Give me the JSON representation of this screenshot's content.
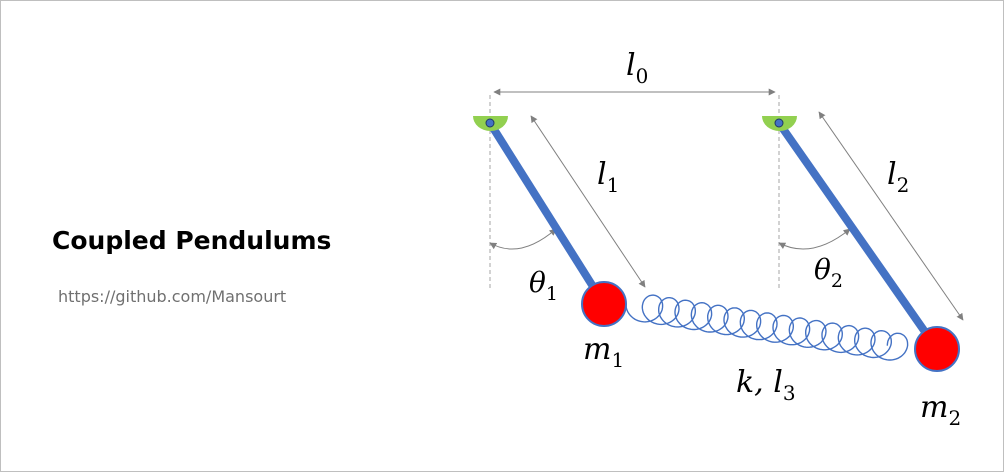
{
  "title": "Coupled Pendulums",
  "credit": "https://github.com/Mansourt",
  "labels": {
    "l0": {
      "base": "l",
      "sub": "0"
    },
    "l1": {
      "base": "l",
      "sub": "1"
    },
    "l2": {
      "base": "l",
      "sub": "2"
    },
    "theta1": {
      "base": "θ",
      "sub": "1"
    },
    "theta2": {
      "base": "θ",
      "sub": "2"
    },
    "m1": {
      "base": "m",
      "sub": "1"
    },
    "m2": {
      "base": "m",
      "sub": "2"
    },
    "spring": {
      "base": "k, l",
      "sub": "3"
    }
  },
  "colors": {
    "rod": "#4472c4",
    "bob": "#ff0000",
    "pivot": "#92d050",
    "spring": "#4472c4",
    "guide": "#a6a6a6",
    "arrow": "#808080"
  }
}
